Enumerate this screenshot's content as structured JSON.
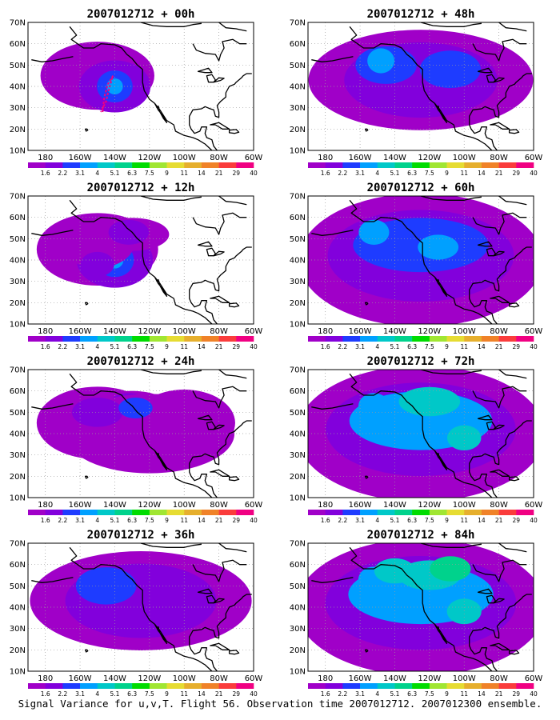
{
  "caption": "Signal Variance for u,v,T. Flight 56. Observation time 2007012712. 2007012300 ensemble.",
  "panels": [
    {
      "title": "2007012712 + 00h",
      "coverage": 0.15
    },
    {
      "title": "2007012712 + 48h",
      "coverage": 0.72
    },
    {
      "title": "2007012712 + 12h",
      "coverage": 0.35
    },
    {
      "title": "2007012712 + 60h",
      "coverage": 0.85
    },
    {
      "title": "2007012712 + 24h",
      "coverage": 0.55
    },
    {
      "title": "2007012712 + 72h",
      "coverage": 0.92
    },
    {
      "title": "2007012712 + 36h",
      "coverage": 0.68
    },
    {
      "title": "2007012712 + 84h",
      "coverage": 0.98
    }
  ],
  "axes": {
    "lat_labels": [
      "70N",
      "60N",
      "50N",
      "40N",
      "30N",
      "20N",
      "10N"
    ],
    "lon_labels": [
      "180",
      "160W",
      "140W",
      "120W",
      "100W",
      "80W",
      "60W"
    ]
  },
  "colorbar": {
    "labels": [
      "1.6",
      "2.2",
      "3.1",
      "4",
      "5.1",
      "6.3",
      "7.5",
      "9",
      "11",
      "14",
      "21",
      "29",
      "40"
    ],
    "colors": [
      "#a000c8",
      "#8200dc",
      "#1e3cff",
      "#00a0ff",
      "#00c8c8",
      "#00d28c",
      "#00dc00",
      "#a0e632",
      "#e6dc32",
      "#e6af2d",
      "#f08228",
      "#fa3c3c",
      "#f00082"
    ]
  },
  "colors": {
    "land_outline": "#000000",
    "grid": "#9a9a9a",
    "purple": "#a000c8",
    "violet": "#8200dc",
    "blue": "#1e3cff",
    "lightblue": "#00a0ff",
    "cyan": "#00c8c8",
    "teal": "#00d28c",
    "track": "#f00082"
  }
}
